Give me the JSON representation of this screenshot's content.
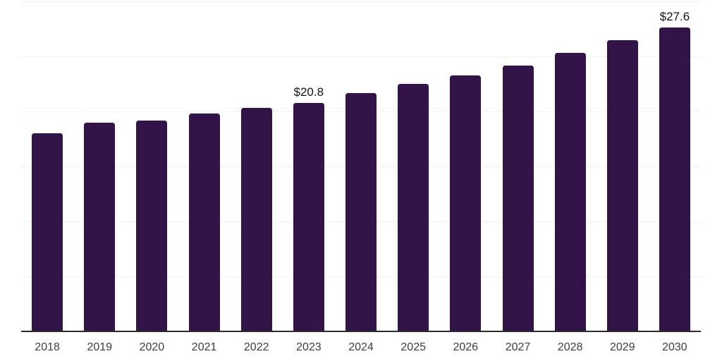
{
  "chart_data": {
    "type": "bar",
    "title": "",
    "xlabel": "",
    "ylabel": "",
    "categories": [
      "2018",
      "2019",
      "2020",
      "2021",
      "2022",
      "2023",
      "2024",
      "2025",
      "2026",
      "2027",
      "2028",
      "2029",
      "2030"
    ],
    "values": [
      18.0,
      19.0,
      19.2,
      19.8,
      20.3,
      20.8,
      21.7,
      22.5,
      23.3,
      24.2,
      25.3,
      26.5,
      27.6
    ],
    "annotations": [
      {
        "category": "2023",
        "text": "$20.8"
      },
      {
        "category": "2030",
        "text": "$27.6"
      }
    ],
    "ylim": [
      0,
      30
    ],
    "grid_step": 5,
    "grid": "horizontal gridlines only, no y-axis tick labels",
    "legend_position": "none",
    "colors": {
      "bar": "#331449",
      "grid_line": "#f2f2f2",
      "axis_line": "#2b2b2b",
      "tick_label": "#3d3d3d",
      "annotation": "#141414",
      "background": "#ffffff"
    }
  }
}
